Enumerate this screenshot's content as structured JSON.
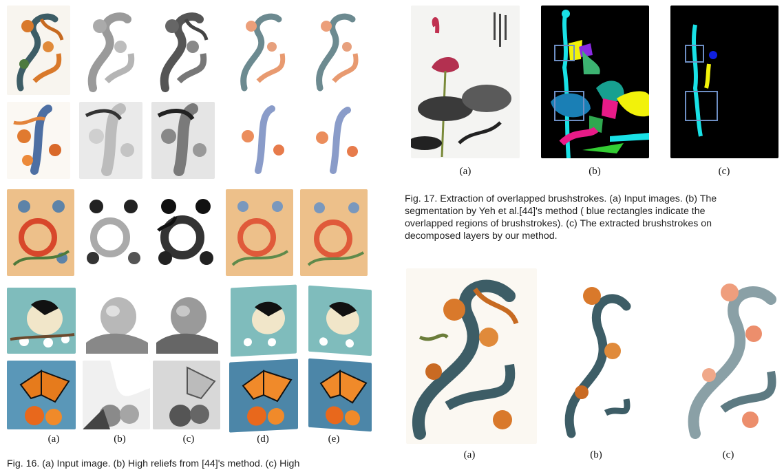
{
  "fig16": {
    "col_labels": [
      "(a)",
      "(b)",
      "(c)",
      "(d)",
      "(e)"
    ],
    "caption_partial": "Fig. 16. (a) Input image. (b) High reliefs from [44]'s method. (c) High"
  },
  "fig17": {
    "labels": [
      "(a)",
      "(b)",
      "(c)"
    ],
    "caption_lines": [
      "Fig. 17. Extraction of overlapped brushstrokes. (a) Input images. (b) The",
      "segmentation by Yeh et al.[44]'s method ( blue rectangles indicate the",
      "overlapped regions of brushstrokes). (c) The extracted brushstrokes on",
      "decomposed layers by our method."
    ]
  },
  "fig18": {
    "labels": [
      "(a)",
      "(b)",
      "(c)"
    ]
  },
  "colors": {
    "orange": "#d9792b",
    "teal": "#3d5d66",
    "peach_bg": "#edc08a",
    "teal_bg": "#7fbcbc",
    "blue_bg": "#4c86a8",
    "seg_cyan": "#19e1e6",
    "seg_yellow": "#f2f20a",
    "seg_magenta": "#e81b88",
    "rect_blue": "#6e8fc4"
  }
}
